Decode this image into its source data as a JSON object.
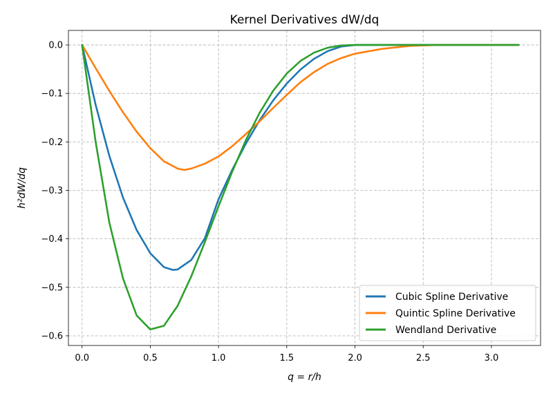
{
  "chart_data": {
    "type": "line",
    "title": "Kernel Derivatives dW/dq",
    "xlabel": "q = r/h",
    "ylabel": "h²dW/dq",
    "xlim": [
      -0.1,
      3.36
    ],
    "ylim": [
      -0.62,
      0.03
    ],
    "xticks": [
      0.0,
      0.5,
      1.0,
      1.5,
      2.0,
      2.5,
      3.0
    ],
    "xtick_labels": [
      "0.0",
      "0.5",
      "1.0",
      "1.5",
      "2.0",
      "2.5",
      "3.0"
    ],
    "yticks": [
      0.0,
      -0.1,
      -0.2,
      -0.3,
      -0.4,
      -0.5,
      -0.6
    ],
    "ytick_labels": [
      "0.0",
      "−0.1",
      "−0.2",
      "−0.3",
      "−0.4",
      "−0.5",
      "−0.6"
    ],
    "grid": true,
    "legend_position": "bottom-right",
    "series": [
      {
        "name": "Cubic Spline Derivative",
        "color": "#1f77b4",
        "x": [
          0.0,
          0.1,
          0.2,
          0.3,
          0.4,
          0.5,
          0.6,
          0.667,
          0.7,
          0.8,
          0.9,
          1.0,
          1.1,
          1.2,
          1.3,
          1.4,
          1.5,
          1.6,
          1.7,
          1.8,
          1.9,
          2.0,
          2.5,
          3.2
        ],
        "y": [
          0.0,
          -0.1242,
          -0.2292,
          -0.315,
          -0.3819,
          -0.4297,
          -0.4584,
          -0.4642,
          -0.4632,
          -0.4437,
          -0.3986,
          -0.3183,
          -0.2579,
          -0.2037,
          -0.156,
          -0.1146,
          -0.0796,
          -0.0509,
          -0.0286,
          -0.0127,
          -0.0032,
          0.0,
          0.0,
          0.0
        ]
      },
      {
        "name": "Quintic Spline Derivative",
        "color": "#ff7f0e",
        "x": [
          0.0,
          0.1,
          0.2,
          0.3,
          0.4,
          0.5,
          0.6,
          0.7,
          0.75,
          0.8,
          0.9,
          1.0,
          1.1,
          1.2,
          1.3,
          1.4,
          1.5,
          1.6,
          1.7,
          1.8,
          1.9,
          2.0,
          2.2,
          2.4,
          2.6,
          3.2
        ],
        "y": [
          0.0,
          -0.048,
          -0.095,
          -0.139,
          -0.179,
          -0.213,
          -0.24,
          -0.255,
          -0.258,
          -0.255,
          -0.245,
          -0.23,
          -0.209,
          -0.184,
          -0.158,
          -0.13,
          -0.103,
          -0.077,
          -0.056,
          -0.039,
          -0.027,
          -0.018,
          -0.008,
          -0.002,
          0.0,
          0.0
        ]
      },
      {
        "name": "Wendland Derivative",
        "color": "#2ca02c",
        "x": [
          0.0,
          0.1,
          0.2,
          0.3,
          0.4,
          0.5,
          0.6,
          0.7,
          0.8,
          0.9,
          1.0,
          1.1,
          1.2,
          1.3,
          1.4,
          1.5,
          1.6,
          1.7,
          1.8,
          1.9,
          2.0,
          3.2
        ],
        "y": [
          0.0,
          -0.2009,
          -0.3668,
          -0.4818,
          -0.5581,
          -0.5869,
          -0.5793,
          -0.5382,
          -0.4775,
          -0.4066,
          -0.3328,
          -0.2616,
          -0.1966,
          -0.1406,
          -0.0947,
          -0.059,
          -0.0331,
          -0.0159,
          -0.0057,
          -0.0011,
          0.0,
          0.0
        ]
      }
    ]
  }
}
